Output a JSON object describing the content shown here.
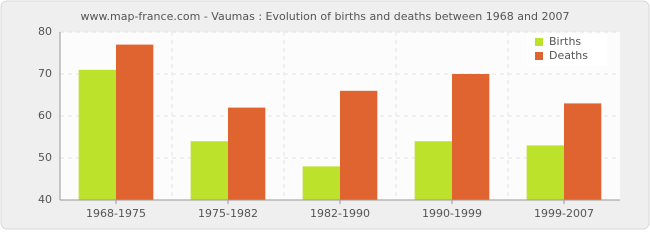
{
  "chart_data": {
    "type": "bar",
    "title": "www.map-france.com - Vaumas : Evolution of births and deaths between 1968 and 2007",
    "categories": [
      "1968-1975",
      "1975-1982",
      "1982-1990",
      "1990-1999",
      "1999-2007"
    ],
    "series": [
      {
        "name": "Births",
        "color": "#bde22c",
        "values": [
          71,
          54,
          48,
          54,
          53
        ]
      },
      {
        "name": "Deaths",
        "color": "#e0642f",
        "values": [
          77,
          62,
          66,
          70,
          63
        ]
      }
    ],
    "ylim": [
      40,
      80
    ],
    "yticks": [
      40,
      50,
      60,
      70,
      80
    ],
    "grid": true,
    "legend": "top-right"
  }
}
